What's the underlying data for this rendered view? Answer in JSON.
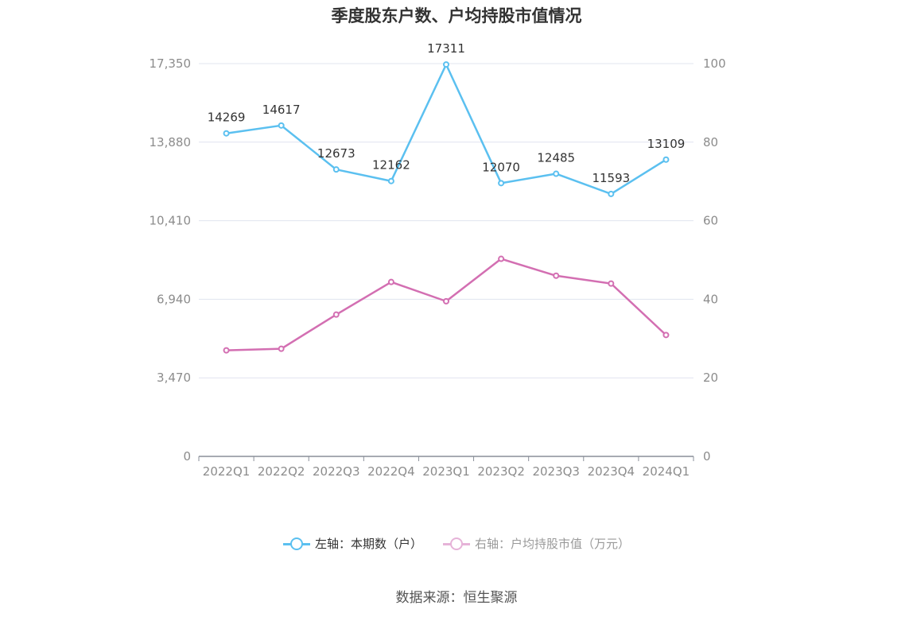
{
  "chart_data": {
    "type": "line",
    "title": "季度股东户数、户均持股市值情况",
    "categories": [
      "2022Q1",
      "2022Q2",
      "2022Q3",
      "2022Q4",
      "2023Q1",
      "2023Q2",
      "2023Q3",
      "2023Q4",
      "2024Q1"
    ],
    "y_left": {
      "ticks": [
        "0",
        "3,470",
        "6,940",
        "10,410",
        "13,880",
        "17,350"
      ],
      "ylim": [
        0,
        17350
      ]
    },
    "y_right": {
      "ticks": [
        "0",
        "20",
        "40",
        "60",
        "80",
        "100"
      ],
      "ylim": [
        0,
        100
      ]
    },
    "grid": true,
    "legend_position": "bottom",
    "series": [
      {
        "name": "左轴：本期数（户）",
        "axis": "left",
        "color": "#5bc0f0",
        "values": [
          14269,
          14617,
          12673,
          12162,
          17311,
          12070,
          12485,
          11593,
          13109
        ],
        "labels": [
          "14269",
          "14617",
          "12673",
          "12162",
          "17311",
          "12070",
          "12485",
          "11593",
          "13109"
        ]
      },
      {
        "name": "右轴：户均持股市值（万元）",
        "axis": "right",
        "color": "#d36fb2",
        "values": [
          27.0,
          27.4,
          36.1,
          44.4,
          39.5,
          50.3,
          46.0,
          44.0,
          30.9
        ]
      }
    ]
  },
  "source": "数据来源：恒生聚源"
}
